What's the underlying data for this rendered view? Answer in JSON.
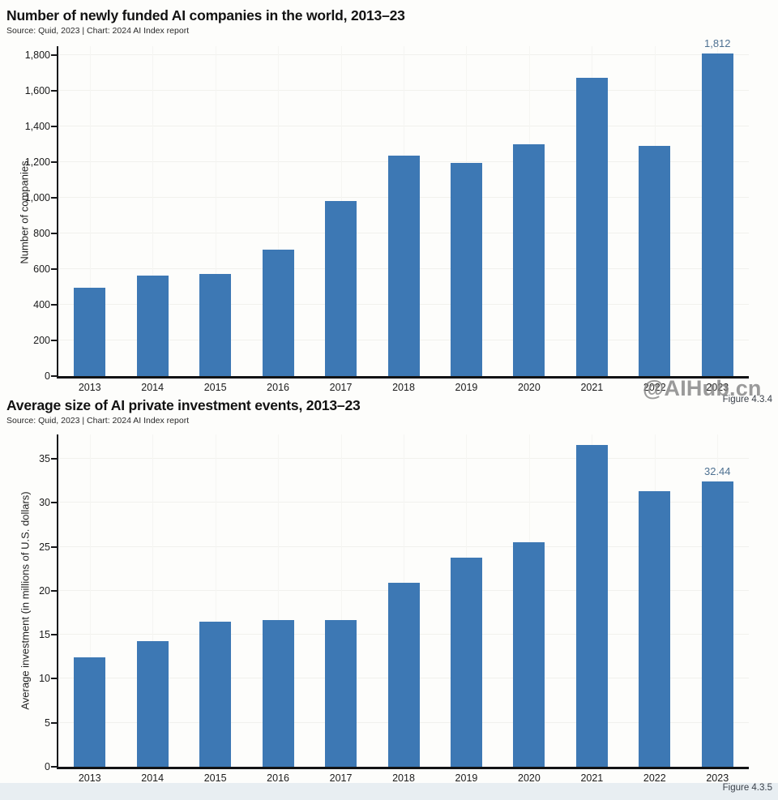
{
  "watermark": {
    "text": "@AIHub.cn"
  },
  "colors": {
    "bar": "#3d78b4",
    "value_label": "#4e7191",
    "bottom_strip": "#e8eef2"
  },
  "chart_data": [
    {
      "type": "bar",
      "title": "Number of newly funded AI companies in the world, 2013–23",
      "subtitle": "Source: Quid, 2023 | Chart: 2024 AI Index report",
      "figure_caption": "Figure 4.3.4",
      "ylabel": "Number of companies",
      "xlabel": "",
      "categories": [
        "2013",
        "2014",
        "2015",
        "2016",
        "2017",
        "2018",
        "2019",
        "2020",
        "2021",
        "2022",
        "2023"
      ],
      "values": [
        495,
        565,
        573,
        710,
        983,
        1235,
        1195,
        1300,
        1675,
        1290,
        1812
      ],
      "yticks": [
        0,
        200,
        400,
        600,
        800,
        1000,
        1200,
        1400,
        1600,
        1800
      ],
      "ytick_labels": [
        "0",
        "200",
        "400",
        "600",
        "800",
        "1,000",
        "1,200",
        "1,400",
        "1,600",
        "1,800"
      ],
      "ylim": [
        0,
        1851
      ],
      "grid": true,
      "legend": false,
      "bar_color": "#3d78b4",
      "annotations": [
        {
          "category": "2023",
          "text": "1,812"
        }
      ]
    },
    {
      "type": "bar",
      "title": "Average size of AI private investment events, 2013–23",
      "subtitle": "Source: Quid, 2023 | Chart: 2024 AI Index report",
      "figure_caption": "Figure 4.3.5",
      "ylabel": "Average investment (in millions of U.S. dollars)",
      "xlabel": "",
      "categories": [
        "2013",
        "2014",
        "2015",
        "2016",
        "2017",
        "2018",
        "2019",
        "2020",
        "2021",
        "2022",
        "2023"
      ],
      "values": [
        12.4,
        14.3,
        16.5,
        16.7,
        16.7,
        20.9,
        23.8,
        25.5,
        36.6,
        31.3,
        32.44
      ],
      "yticks": [
        0,
        5,
        10,
        15,
        20,
        25,
        30,
        35
      ],
      "ytick_labels": [
        "0",
        "5",
        "10",
        "15",
        "20",
        "25",
        "30",
        "35"
      ],
      "ylim": [
        0,
        37.76
      ],
      "grid": true,
      "legend": false,
      "bar_color": "#3d78b4",
      "annotations": [
        {
          "category": "2023",
          "text": "32.44"
        }
      ]
    }
  ]
}
